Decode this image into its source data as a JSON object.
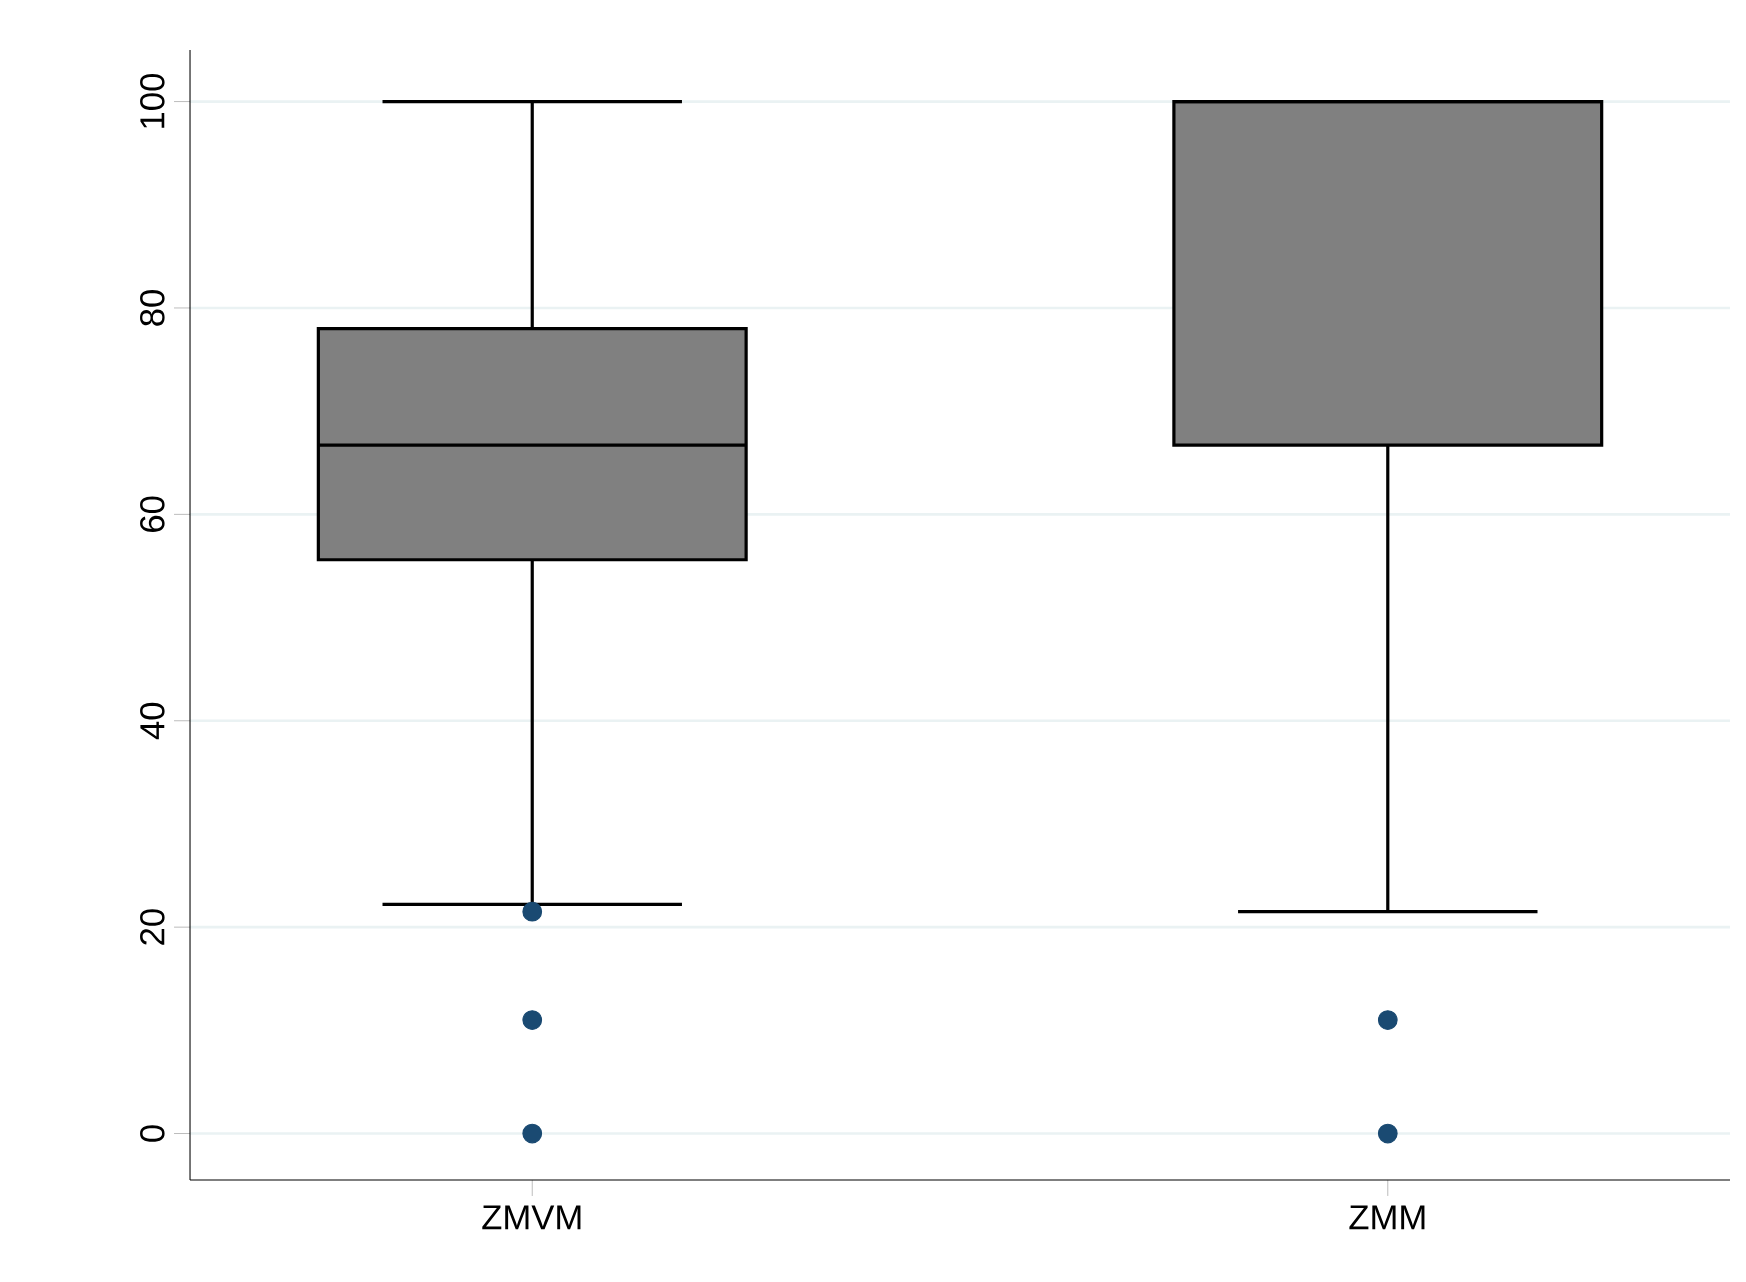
{
  "chart_data": {
    "type": "box",
    "categories": [
      "ZMVM",
      "ZMM"
    ],
    "series": [
      {
        "color": "#808080",
        "boxes": [
          {
            "low": 22.2,
            "q1": 55.6,
            "median": 66.7,
            "q3": 78,
            "high": 100
          },
          {
            "low": 21.5,
            "q1": 66.7,
            "median": 100,
            "q3": 100,
            "high": 100
          }
        ]
      },
      {
        "type": "scatter",
        "color": "#1a4a72",
        "x": [
          "ZMVM",
          "ZMVM",
          "ZMVM",
          "ZMM",
          "ZMM"
        ],
        "values": [
          21.5,
          11,
          0,
          11,
          0
        ]
      }
    ],
    "ylim": [
      -4.5,
      105
    ],
    "yticks": [
      0,
      20,
      40,
      60,
      80,
      100
    ],
    "grid": "y"
  }
}
